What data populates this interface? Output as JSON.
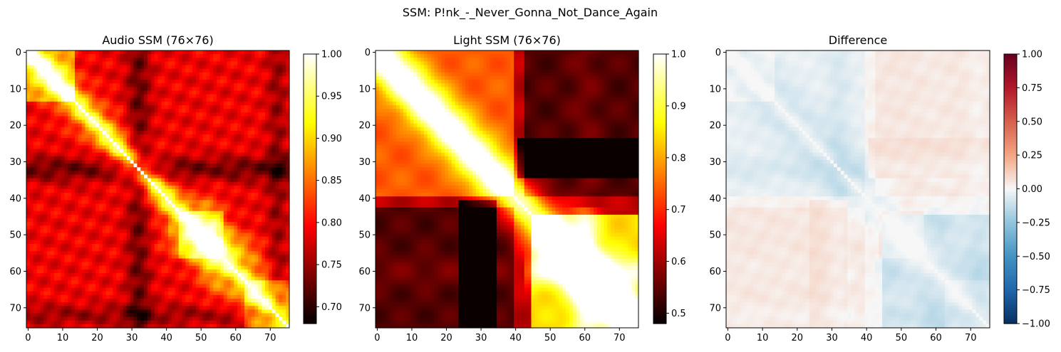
{
  "suptitle": "SSM: P!nk_-_Never_Gonna_Not_Dance_Again",
  "chart_data": [
    {
      "type": "heatmap",
      "title": "Audio SSM (76×76)",
      "size": 76,
      "colormap": "hot",
      "vmin": 0.68,
      "vmax": 1.0,
      "xticks": [
        "0",
        "10",
        "20",
        "30",
        "40",
        "50",
        "60",
        "70"
      ],
      "yticks": [
        "0",
        "10",
        "20",
        "30",
        "40",
        "50",
        "60",
        "70"
      ],
      "colorbar_ticks": [
        "0.70",
        "0.75",
        "0.80",
        "0.85",
        "0.90",
        "0.95",
        "1.00"
      ],
      "colorbar_values": [
        0.7,
        0.75,
        0.8,
        0.85,
        0.9,
        0.95,
        1.0
      ]
    },
    {
      "type": "heatmap",
      "title": "Light SSM (76×76)",
      "size": 76,
      "colormap": "hot",
      "vmin": 0.48,
      "vmax": 1.0,
      "xticks": [
        "0",
        "10",
        "20",
        "30",
        "40",
        "50",
        "60",
        "70"
      ],
      "yticks": [
        "0",
        "10",
        "20",
        "30",
        "40",
        "50",
        "60",
        "70"
      ],
      "colorbar_ticks": [
        "0.5",
        "0.6",
        "0.7",
        "0.8",
        "0.9",
        "1.0"
      ],
      "colorbar_values": [
        0.5,
        0.6,
        0.7,
        0.8,
        0.9,
        1.0
      ]
    },
    {
      "type": "heatmap",
      "title": "Difference",
      "size": 76,
      "colormap": "RdBu_r",
      "vmin": -1.0,
      "vmax": 1.0,
      "xticks": [
        "0",
        "10",
        "20",
        "30",
        "40",
        "50",
        "60",
        "70"
      ],
      "yticks": [
        "0",
        "10",
        "20",
        "30",
        "40",
        "50",
        "60",
        "70"
      ],
      "colorbar_ticks": [
        "−1.00",
        "−0.75",
        "−0.50",
        "−0.25",
        "0.00",
        "0.25",
        "0.50",
        "0.75",
        "1.00"
      ],
      "colorbar_values": [
        -1.0,
        -0.75,
        -0.5,
        -0.25,
        0,
        0.25,
        0.5,
        0.75,
        1.0
      ]
    }
  ]
}
